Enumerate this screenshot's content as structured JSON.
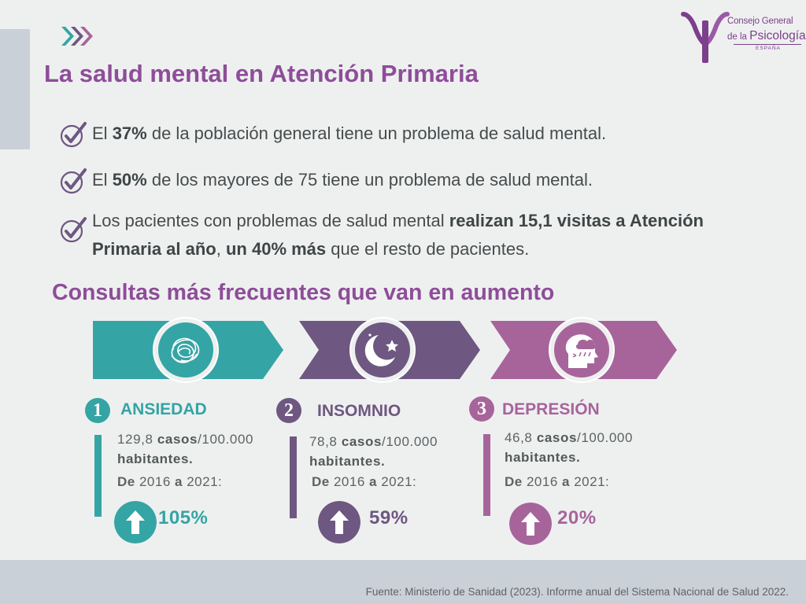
{
  "colors": {
    "title_purple": "#8e4d99",
    "teal": "#35a4a4",
    "dark_purple": "#6e5781",
    "mauve": "#a7649b",
    "footer_band": "#c9d0d7"
  },
  "logo": {
    "line1": "Consejo General",
    "line2_prefix": "de la ",
    "line2_main": "Psicología",
    "line3": "ESPAÑA"
  },
  "header": {
    "title": "La salud mental en Atención Primaria"
  },
  "bullets": [
    {
      "icon": "check-icon",
      "pre": "El ",
      "bold1": "37%",
      "mid": " de la población general tiene un problema de salud mental.",
      "bold2": "",
      "mid2": "",
      "bold3": "",
      "post": ""
    },
    {
      "icon": "check-icon",
      "pre": "El ",
      "bold1": "50%",
      "mid": " de los mayores de 75 tiene un problema de salud mental.",
      "bold2": "",
      "mid2": "",
      "bold3": "",
      "post": ""
    },
    {
      "icon": "check-icon",
      "pre": "Los pacientes con problemas de salud mental ",
      "bold1": "realizan 15,1 visitas a Atención Primaria al año",
      "mid": ", ",
      "bold2": "un 40% más",
      "mid2": " que el resto de pacientes.",
      "bold3": "",
      "post": ""
    }
  ],
  "section": {
    "title": "Consultas más frecuentes que van en aumento"
  },
  "consultas": [
    {
      "num": "1",
      "title": "ANSIEDAD",
      "icon": "tangled-thoughts-icon",
      "value": "129,8",
      "cases_word": "casos",
      "per": "/100.000",
      "unit2": "habitantes.",
      "period_pre": "De ",
      "year_from": "2016",
      "period_mid": " a ",
      "year_to": "2021",
      "period_post": ":",
      "change": "105%",
      "trend_icon": "arrow-up-icon",
      "color": "#35a4a4"
    },
    {
      "num": "2",
      "title": "INSOMNIO",
      "icon": "moon-star-icon",
      "value": "78,8",
      "cases_word": "casos",
      "per": "/100.000",
      "unit2": "habitantes.",
      "period_pre": "De ",
      "year_from": "2016",
      "period_mid": " a ",
      "year_to": "2021",
      "period_post": ":",
      "change": "59%",
      "trend_icon": "arrow-up-icon",
      "color": "#6e5781"
    },
    {
      "num": "3",
      "title": "DEPRESIÓN",
      "icon": "head-rain-cloud-icon",
      "value": "46,8",
      "cases_word": "casos",
      "per": "/100.000",
      "unit2": "habitantes.",
      "period_pre": "De ",
      "year_from": "2016",
      "period_mid": " a ",
      "year_to": "2021",
      "period_post": ":",
      "change": "20%",
      "trend_icon": "arrow-up-icon",
      "color": "#a7649b"
    }
  ],
  "footer": {
    "source": "Fuente: Ministerio de Sanidad (2023). Informe anual del Sistema Nacional de Salud 2022."
  }
}
